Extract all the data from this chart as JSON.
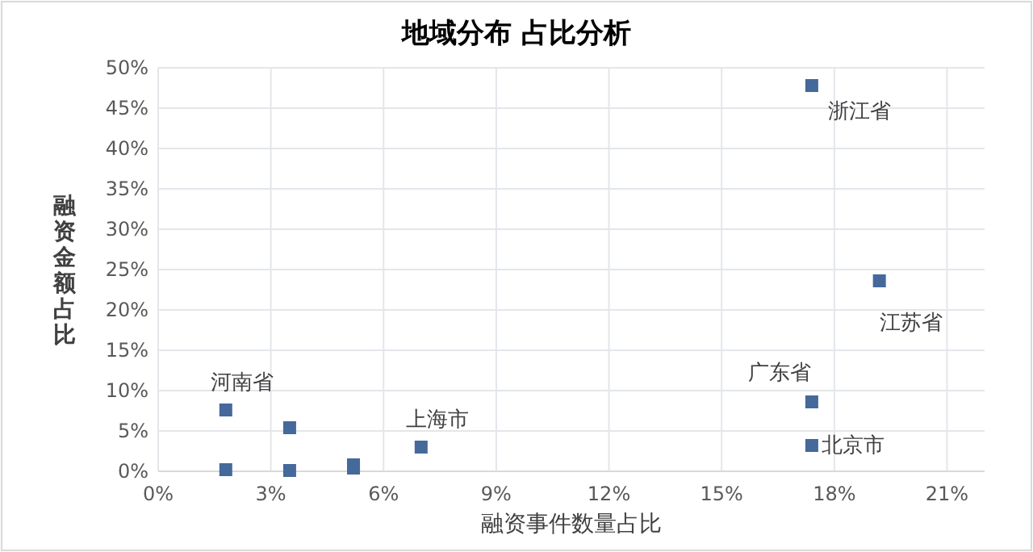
{
  "chart_data": {
    "type": "scatter",
    "title": "地域分布 占比分析",
    "xlabel": "融资事件数量占比",
    "ylabel": "融资金额占比",
    "x": [
      1.8,
      1.8,
      3.5,
      3.5,
      5.2,
      5.2,
      7.0,
      17.4,
      19.2,
      17.4,
      17.4
    ],
    "values": [
      7.6,
      0.2,
      5.4,
      0.1,
      0.8,
      0.4,
      3.0,
      47.8,
      23.6,
      8.6,
      3.2
    ],
    "color": "#44699a",
    "marker": "square",
    "grid": true,
    "xlim": [
      0,
      22
    ],
    "ylim": [
      0,
      50
    ],
    "xticks": [
      {
        "value": 0,
        "label": "0%"
      },
      {
        "value": 3,
        "label": "3%"
      },
      {
        "value": 6,
        "label": "6%"
      },
      {
        "value": 9,
        "label": "9%"
      },
      {
        "value": 12,
        "label": "12%"
      },
      {
        "value": 15,
        "label": "15%"
      },
      {
        "value": 18,
        "label": "18%"
      },
      {
        "value": 21,
        "label": "21%"
      }
    ],
    "yticks": [
      {
        "value": 0,
        "label": "0%"
      },
      {
        "value": 5,
        "label": "5%"
      },
      {
        "value": 10,
        "label": "10%"
      },
      {
        "value": 15,
        "label": "15%"
      },
      {
        "value": 20,
        "label": "20%"
      },
      {
        "value": 25,
        "label": "25%"
      },
      {
        "value": 30,
        "label": "30%"
      },
      {
        "value": 35,
        "label": "35%"
      },
      {
        "value": 40,
        "label": "40%"
      },
      {
        "value": 45,
        "label": "45%"
      },
      {
        "value": 50,
        "label": "50%"
      }
    ],
    "annotations": [
      {
        "text": "河南省",
        "x": 1.8,
        "y": 7.6
      },
      {
        "text": "上海市",
        "x": 7.0,
        "y": 3.0
      },
      {
        "text": "浙江省",
        "x": 17.4,
        "y": 47.8
      },
      {
        "text": "江苏省",
        "x": 19.2,
        "y": 23.6
      },
      {
        "text": "广东省",
        "x": 17.4,
        "y": 8.6
      },
      {
        "text": "北京市",
        "x": 17.4,
        "y": 3.2
      }
    ]
  }
}
